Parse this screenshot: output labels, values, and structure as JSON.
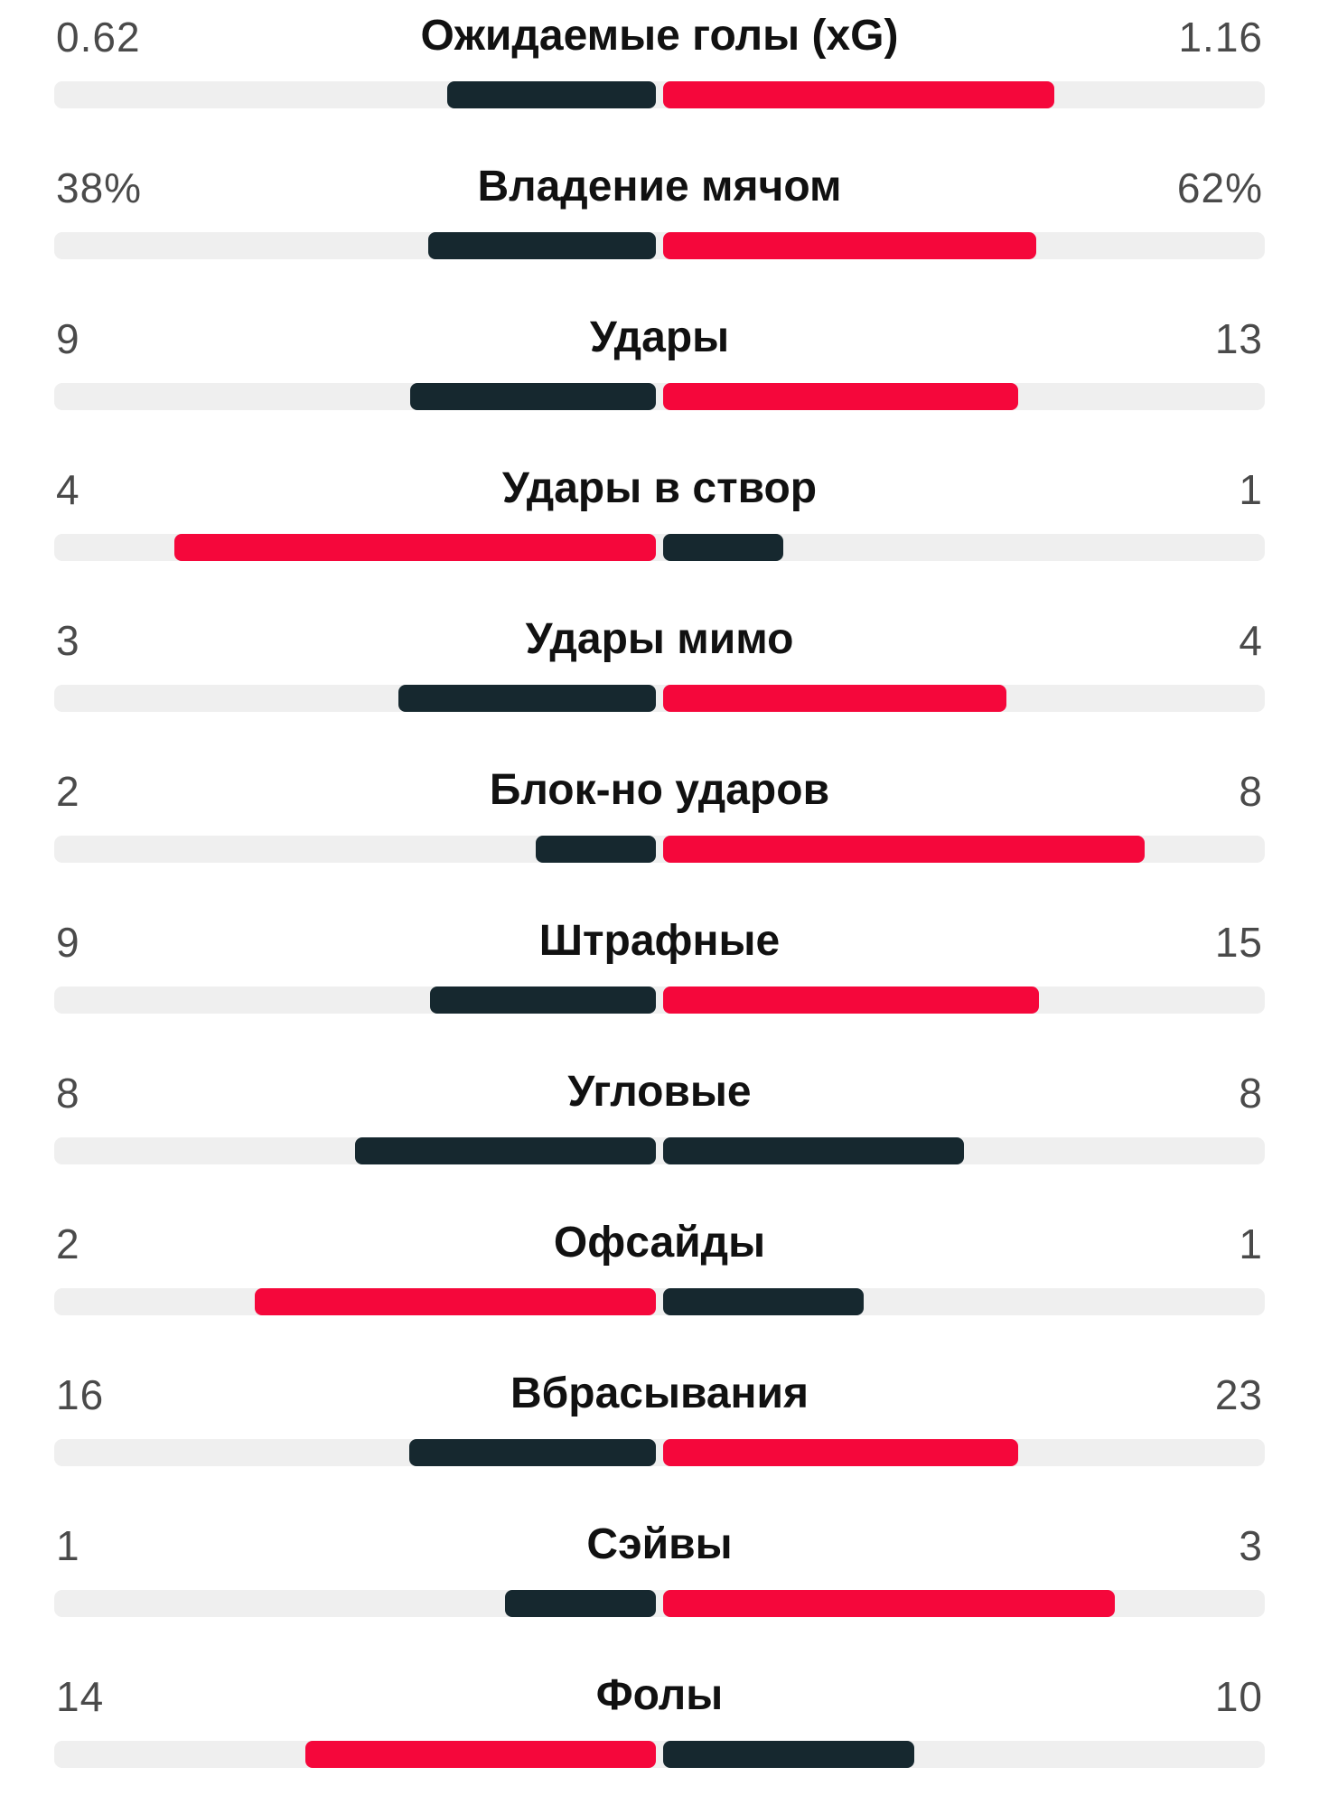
{
  "colors": {
    "leader": "#f5073b",
    "trailer": "#16282f",
    "track": "#efefef"
  },
  "stats": [
    {
      "label": "Ожидаемые голы (xG)",
      "home": "0.62",
      "away": "1.16",
      "home_fraction": 0.347,
      "away_fraction": 0.65,
      "home_bar_color": "#16282f",
      "away_bar_color": "#f5073b"
    },
    {
      "label": "Владение мячом",
      "home": "38%",
      "away": "62%",
      "home_fraction": 0.378,
      "away_fraction": 0.62,
      "home_bar_color": "#16282f",
      "away_bar_color": "#f5073b"
    },
    {
      "label": "Удары",
      "home": "9",
      "away": "13",
      "home_fraction": 0.409,
      "away_fraction": 0.59,
      "home_bar_color": "#16282f",
      "away_bar_color": "#f5073b"
    },
    {
      "label": "Удары в створ",
      "home": "4",
      "away": "1",
      "home_fraction": 0.8,
      "away_fraction": 0.2,
      "home_bar_color": "#f5073b",
      "away_bar_color": "#16282f"
    },
    {
      "label": "Удары мимо",
      "home": "3",
      "away": "4",
      "home_fraction": 0.428,
      "away_fraction": 0.571,
      "home_bar_color": "#16282f",
      "away_bar_color": "#f5073b"
    },
    {
      "label": "Блок-но ударов",
      "home": "2",
      "away": "8",
      "home_fraction": 0.2,
      "away_fraction": 0.8,
      "home_bar_color": "#16282f",
      "away_bar_color": "#f5073b"
    },
    {
      "label": "Штрафные",
      "home": "9",
      "away": "15",
      "home_fraction": 0.375,
      "away_fraction": 0.625,
      "home_bar_color": "#16282f",
      "away_bar_color": "#f5073b"
    },
    {
      "label": "Угловые",
      "home": "8",
      "away": "8",
      "home_fraction": 0.5,
      "away_fraction": 0.5,
      "home_bar_color": "#16282f",
      "away_bar_color": "#16282f"
    },
    {
      "label": "Офсайды",
      "home": "2",
      "away": "1",
      "home_fraction": 0.667,
      "away_fraction": 0.333,
      "home_bar_color": "#f5073b",
      "away_bar_color": "#16282f"
    },
    {
      "label": "Вбрасывания",
      "home": "16",
      "away": "23",
      "home_fraction": 0.41,
      "away_fraction": 0.59,
      "home_bar_color": "#16282f",
      "away_bar_color": "#f5073b"
    },
    {
      "label": "Сэйвы",
      "home": "1",
      "away": "3",
      "home_fraction": 0.25,
      "away_fraction": 0.75,
      "home_bar_color": "#16282f",
      "away_bar_color": "#f5073b"
    },
    {
      "label": "Фолы",
      "home": "14",
      "away": "10",
      "home_fraction": 0.583,
      "away_fraction": 0.417,
      "home_bar_color": "#f5073b",
      "away_bar_color": "#16282f"
    }
  ]
}
